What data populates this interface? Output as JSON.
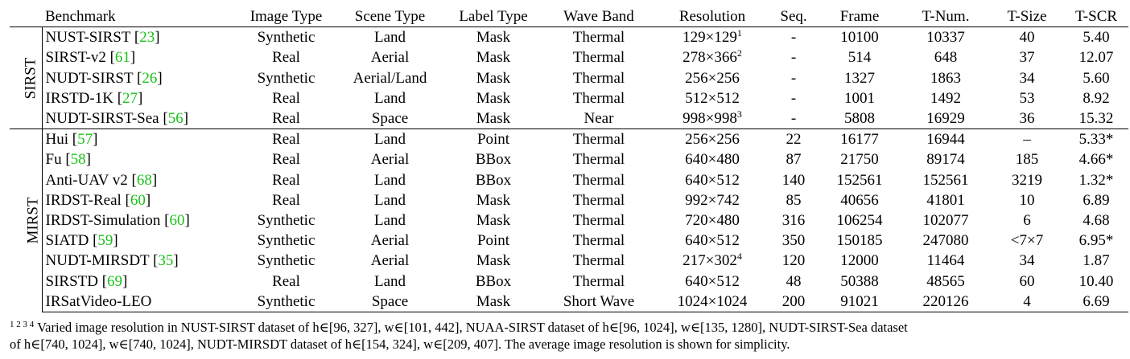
{
  "table": {
    "headers": [
      "Benchmark",
      "Image Type",
      "Scene Type",
      "Label Type",
      "Wave Band",
      "Resolution",
      "Seq.",
      "Frame",
      "T-Num.",
      "T-Size",
      "T-SCR"
    ],
    "groups": [
      {
        "label": "SIRST",
        "rows": [
          {
            "name": "NUST-SIRST",
            "cite": "23",
            "image": "Synthetic",
            "scene": "Land",
            "label": "Mask",
            "wave": "Thermal",
            "res": "129×129",
            "res_sup": "1",
            "seq": "-",
            "frame": "10100",
            "tnum": "10337",
            "tsize": "40",
            "tscr": "5.40"
          },
          {
            "name": "SIRST-v2",
            "cite": "61",
            "image": "Real",
            "scene": "Aerial",
            "label": "Mask",
            "wave": "Thermal",
            "res": "278×366",
            "res_sup": "2",
            "seq": "-",
            "frame": "514",
            "tnum": "648",
            "tsize": "37",
            "tscr": "12.07"
          },
          {
            "name": "NUDT-SIRST",
            "cite": "26",
            "image": "Synthetic",
            "scene": "Aerial/Land",
            "label": "Mask",
            "wave": "Thermal",
            "res": "256×256",
            "res_sup": "",
            "seq": "-",
            "frame": "1327",
            "tnum": "1863",
            "tsize": "34",
            "tscr": "5.60"
          },
          {
            "name": "IRSTD-1K",
            "cite": "27",
            "image": "Real",
            "scene": "Land",
            "label": "Mask",
            "wave": "Thermal",
            "res": "512×512",
            "res_sup": "",
            "seq": "-",
            "frame": "1001",
            "tnum": "1492",
            "tsize": "53",
            "tscr": "8.92"
          },
          {
            "name": "NUDT-SIRST-Sea",
            "cite": "56",
            "image": "Real",
            "scene": "Space",
            "label": "Mask",
            "wave": "Near",
            "res": "998×998",
            "res_sup": "3",
            "seq": "-",
            "frame": "5808",
            "tnum": "16929",
            "tsize": "36",
            "tscr": "15.32"
          }
        ]
      },
      {
        "label": "MIRST",
        "rows": [
          {
            "name": "Hui",
            "cite": "57",
            "image": "Real",
            "scene": "Land",
            "label": "Point",
            "wave": "Thermal",
            "res": "256×256",
            "res_sup": "",
            "seq": "22",
            "frame": "16177",
            "tnum": "16944",
            "tsize": "–",
            "tscr": "5.33*"
          },
          {
            "name": "Fu",
            "cite": "58",
            "image": "Real",
            "scene": "Aerial",
            "label": "BBox",
            "wave": "Thermal",
            "res": "640×480",
            "res_sup": "",
            "seq": "87",
            "frame": "21750",
            "tnum": "89174",
            "tsize": "185",
            "tscr": "4.66*"
          },
          {
            "name": "Anti-UAV v2",
            "cite": "68",
            "image": "Real",
            "scene": "Land",
            "label": "BBox",
            "wave": "Thermal",
            "res": "640×512",
            "res_sup": "",
            "seq": "140",
            "frame": "152561",
            "tnum": "152561",
            "tsize": "3219",
            "tscr": "1.32*"
          },
          {
            "name": "IRDST-Real",
            "cite": "60",
            "image": "Real",
            "scene": "Land",
            "label": "Mask",
            "wave": "Thermal",
            "res": "992×742",
            "res_sup": "",
            "seq": "85",
            "frame": "40656",
            "tnum": "41801",
            "tsize": "10",
            "tscr": "6.89"
          },
          {
            "name": "IRDST-Simulation",
            "cite": "60",
            "image": "Synthetic",
            "scene": "Land",
            "label": "Mask",
            "wave": "Thermal",
            "res": "720×480",
            "res_sup": "",
            "seq": "316",
            "frame": "106254",
            "tnum": "102077",
            "tsize": "6",
            "tscr": "4.68"
          },
          {
            "name": "SIATD",
            "cite": "59",
            "image": "Synthetic",
            "scene": "Aerial",
            "label": "Point",
            "wave": "Thermal",
            "res": "640×512",
            "res_sup": "",
            "seq": "350",
            "frame": "150185",
            "tnum": "247080",
            "tsize": "<7×7",
            "tscr": "6.95*"
          },
          {
            "name": "NUDT-MIRSDT",
            "cite": "35",
            "image": "Synthetic",
            "scene": "Aerial",
            "label": "Mask",
            "wave": "Thermal",
            "res": "217×302",
            "res_sup": "4",
            "seq": "120",
            "frame": "12000",
            "tnum": "11464",
            "tsize": "34",
            "tscr": "1.87"
          },
          {
            "name": "SIRSTD",
            "cite": "69",
            "image": "Real",
            "scene": "Land",
            "label": "BBox",
            "wave": "Thermal",
            "res": "640×512",
            "res_sup": "",
            "seq": "48",
            "frame": "50388",
            "tnum": "48565",
            "tsize": "60",
            "tscr": "10.40"
          },
          {
            "name": "IRSatVideo-LEO",
            "cite": "",
            "image": "Synthetic",
            "scene": "Space",
            "label": "Mask",
            "wave": "Short Wave",
            "res": "1024×1024",
            "res_sup": "",
            "seq": "200",
            "frame": "91021",
            "tnum": "220126",
            "tsize": "4",
            "tscr": "6.69"
          }
        ]
      }
    ]
  },
  "footnote": {
    "marks": "1 2 3 4",
    "line1": "Varied image resolution in NUST-SIRST dataset of h∈[96, 327], w∈[101, 442], NUAA-SIRST dataset of h∈[96, 1024], w∈[135, 1280], NUDT-SIRST-Sea dataset",
    "line2": "of h∈[740, 1024], w∈[740, 1024], NUDT-MIRSDT dataset of h∈[154, 324], w∈[209, 407]. The average image resolution is shown for simplicity."
  }
}
